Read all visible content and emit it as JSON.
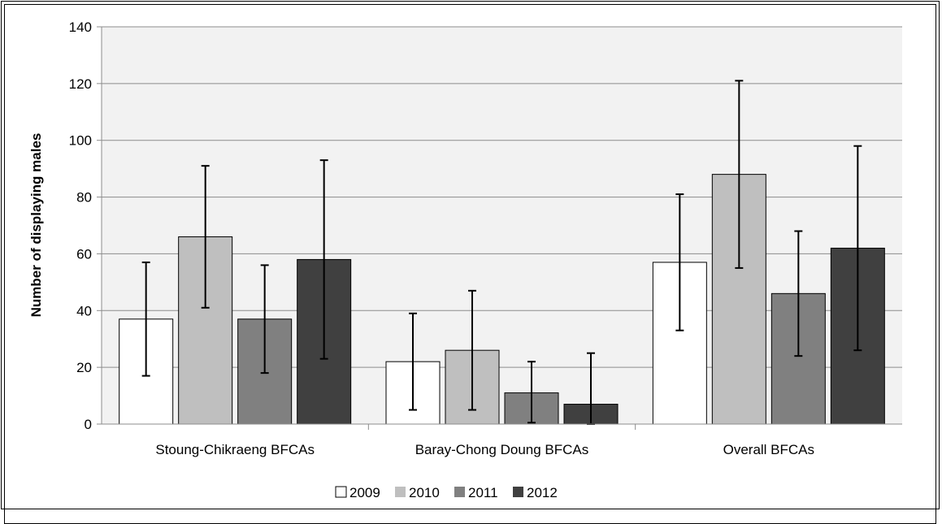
{
  "chart_data": {
    "type": "bar",
    "title": "",
    "xlabel": "",
    "ylabel": "Number of displaying males",
    "ylim": [
      0,
      140
    ],
    "yticks": [
      0,
      20,
      40,
      60,
      80,
      100,
      120,
      140
    ],
    "grid": true,
    "legend_position": "bottom",
    "categories": [
      "Stoung-Chikraeng BFCAs",
      "Baray-Chong Doung BFCAs",
      "Overall BFCAs"
    ],
    "series": [
      {
        "name": "2009",
        "color": "#ffffff",
        "values": [
          37,
          22,
          57
        ],
        "err_low": [
          17,
          5,
          33
        ],
        "err_high": [
          57,
          39,
          81
        ]
      },
      {
        "name": "2010",
        "color": "#bfbfbf",
        "values": [
          66,
          26,
          88
        ],
        "err_low": [
          41,
          5,
          55
        ],
        "err_high": [
          91,
          47,
          121
        ]
      },
      {
        "name": "2011",
        "color": "#808080",
        "values": [
          37,
          11,
          46
        ],
        "err_low": [
          18,
          0.5,
          24
        ],
        "err_high": [
          56,
          22,
          68
        ]
      },
      {
        "name": "2012",
        "color": "#404040",
        "values": [
          58,
          7,
          62
        ],
        "err_low": [
          23,
          0,
          26
        ],
        "err_high": [
          93,
          25,
          98
        ]
      }
    ]
  }
}
